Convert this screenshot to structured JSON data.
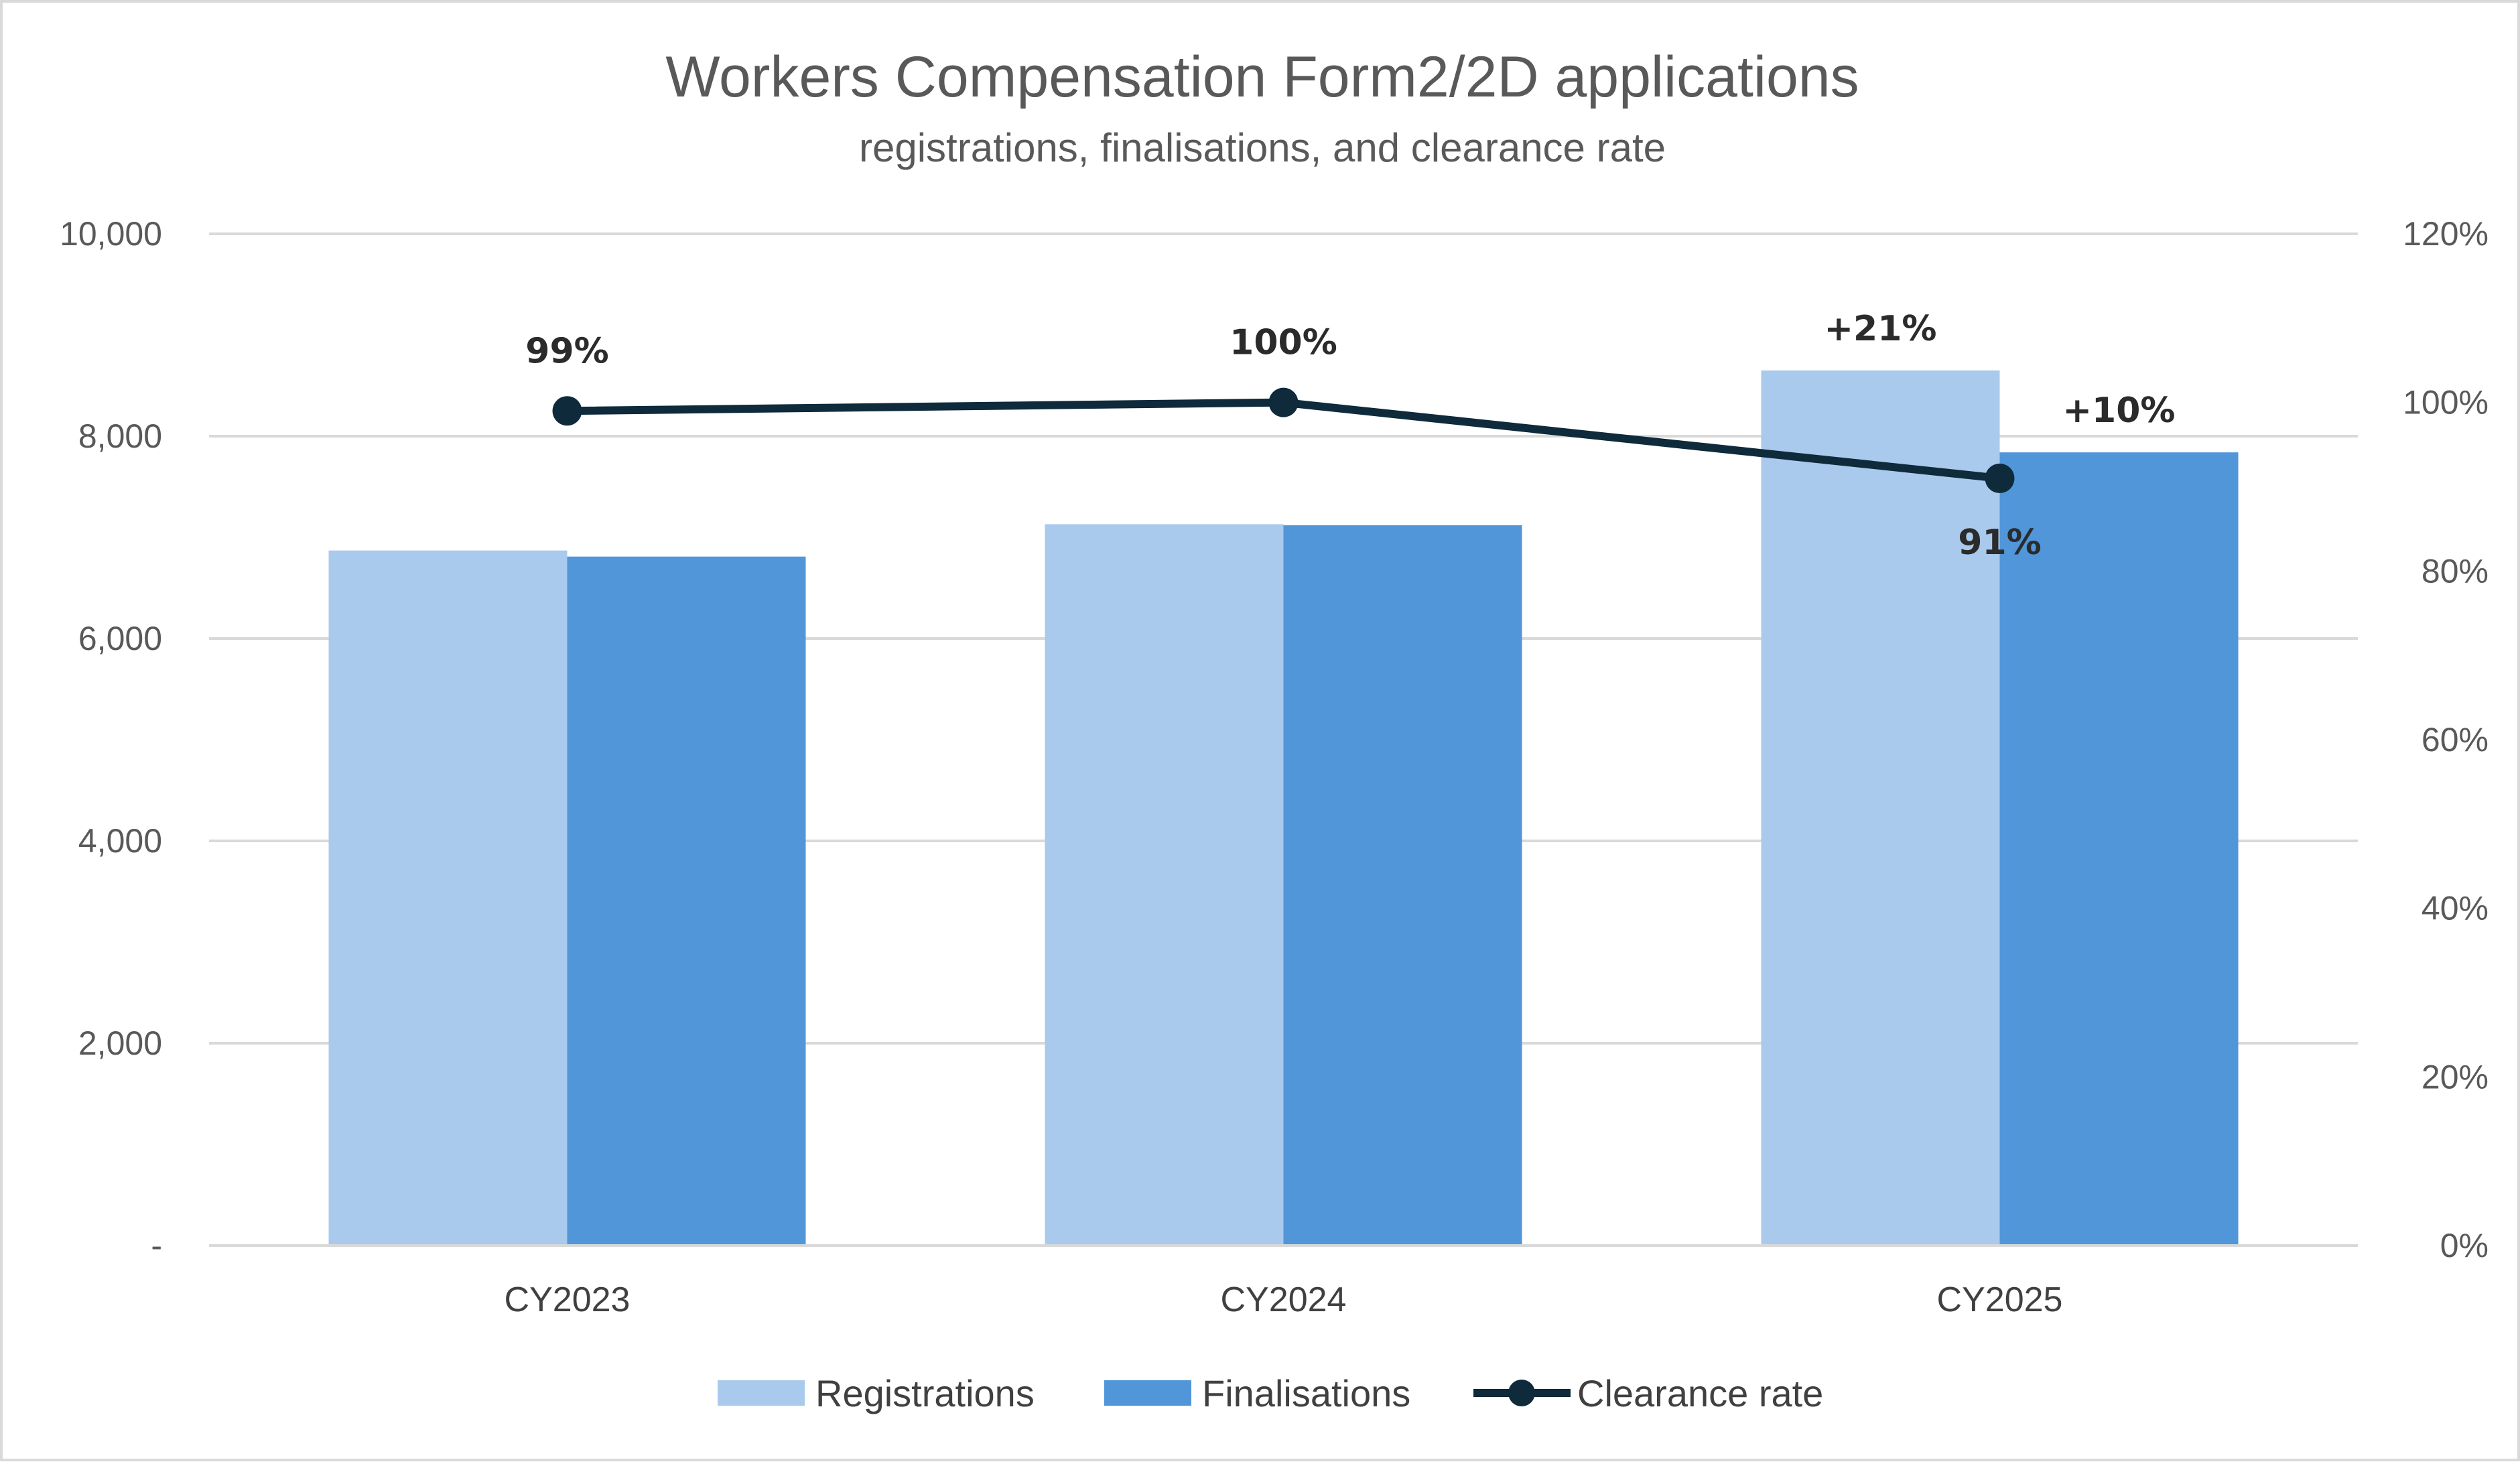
{
  "chart_data": {
    "type": "bar",
    "title": "Workers Compensation Form2/2D applications",
    "subtitle": "registrations, finalisations, and clearance rate",
    "categories": [
      "CY2023",
      "CY2024",
      "CY2025"
    ],
    "series": [
      {
        "name": "Registrations",
        "type": "bar",
        "axis": "left",
        "color": "#a9caec",
        "values": [
          6870,
          7130,
          8650
        ]
      },
      {
        "name": "Finalisations",
        "type": "bar",
        "axis": "left",
        "color": "#5096d9",
        "values": [
          6810,
          7120,
          7840
        ]
      },
      {
        "name": "Clearance rate",
        "type": "line",
        "axis": "right",
        "color": "#0e2a3b",
        "values": [
          99,
          100,
          91
        ]
      }
    ],
    "left_axis": {
      "min": 0,
      "max": 10000,
      "ticks": [
        "-",
        "2,000",
        "4,000",
        "6,000",
        "8,000",
        "10,000"
      ]
    },
    "right_axis": {
      "min": 0,
      "max": 120,
      "ticks": [
        "0%",
        "20%",
        "40%",
        "60%",
        "80%",
        "100%",
        "120%"
      ]
    },
    "data_labels": {
      "clearance_rate": [
        "99%",
        "100%",
        "91%"
      ],
      "registrations_change": [
        "",
        "",
        "+21%"
      ],
      "finalisations_change": [
        "",
        "",
        "+10%"
      ]
    },
    "grid": true,
    "legend": "bottom"
  }
}
